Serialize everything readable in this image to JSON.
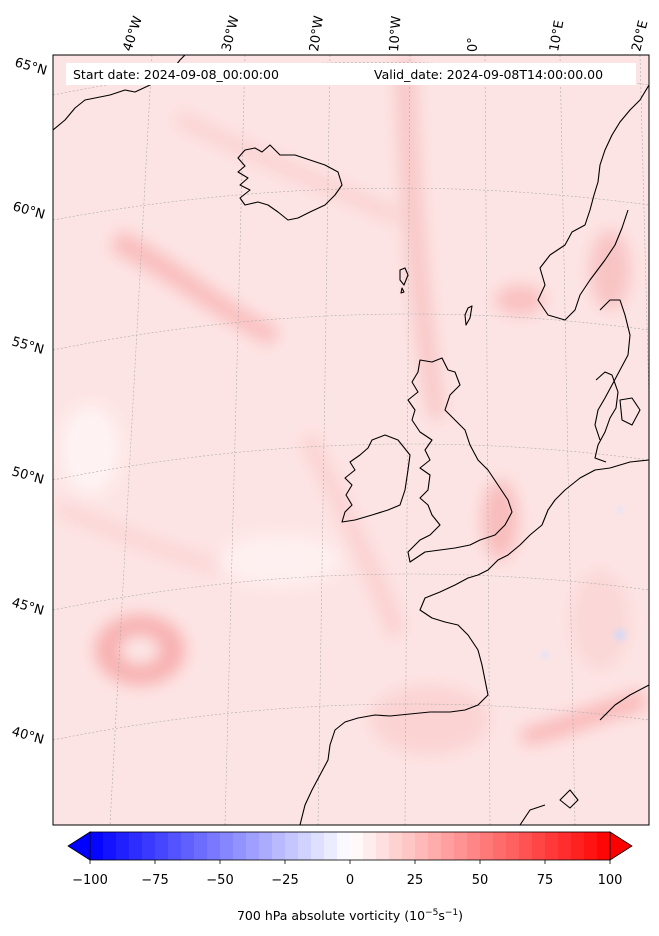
{
  "header": {
    "start_date": "Start date: 2024-09-08_00:00:00",
    "valid_date": "Valid_date: 2024-09-08T14:00:00.00"
  },
  "meridian_labels": [
    "40°W",
    "30°W",
    "20°W",
    "10°W",
    "0°",
    "10°E",
    "20°E"
  ],
  "parallel_labels": [
    "65°N",
    "60°N",
    "55°N",
    "50°N",
    "45°N",
    "40°N"
  ],
  "colorbar": {
    "ticks": [
      "−100",
      "−75",
      "−50",
      "−25",
      "0",
      "25",
      "50",
      "75",
      "100"
    ],
    "min": -100,
    "max": 100,
    "levels": 40,
    "negative_color": "#0000ff",
    "positive_color": "#ff0000",
    "label_main": "700 hPa absolute vorticity (10",
    "label_exp1": "−5",
    "label_mid": "s",
    "label_exp2": "−1",
    "label_end": ")"
  },
  "colors": {
    "land_outline": "#000000",
    "background_field": "#fde3e3",
    "graticule": "#aaaaaa"
  }
}
